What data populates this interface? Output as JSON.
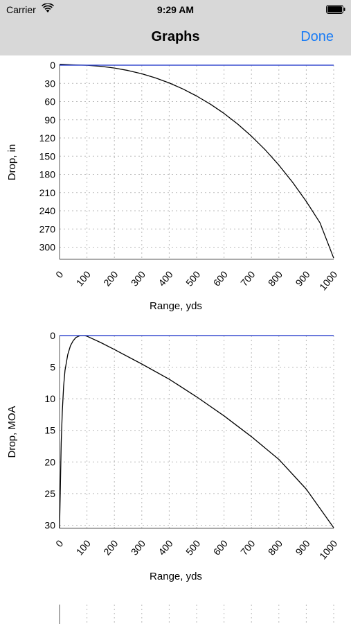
{
  "status_bar": {
    "carrier": "Carrier",
    "time": "9:29 AM"
  },
  "nav": {
    "title": "Graphs",
    "done_label": "Done",
    "accent_color": "#1a7cf5"
  },
  "chart_data": [
    {
      "type": "line",
      "xlabel": "Range, yds",
      "ylabel": "Drop, in",
      "x_ticks": [
        0,
        100,
        200,
        300,
        400,
        500,
        600,
        700,
        800,
        900,
        1000
      ],
      "y_ticks": [
        0,
        30,
        60,
        90,
        120,
        150,
        180,
        210,
        240,
        270,
        300
      ],
      "xlim": [
        0,
        1000
      ],
      "ylim": [
        0,
        320
      ],
      "y_inverted": true,
      "grid": true,
      "series": [
        {
          "color": "#000000",
          "x": [
            0,
            50,
            100,
            150,
            200,
            250,
            300,
            350,
            400,
            450,
            500,
            550,
            600,
            650,
            700,
            750,
            800,
            850,
            900,
            950,
            1000
          ],
          "y": [
            -1.5,
            -0.6,
            0.1,
            1.8,
            4.7,
            8.8,
            14.2,
            21,
            29.3,
            39.2,
            50.8,
            64.2,
            79.6,
            97.1,
            117,
            139.4,
            164.7,
            193,
            224.6,
            259.8,
            318
          ]
        },
        {
          "color": "#3a4fd0",
          "x": [
            0,
            1000
          ],
          "y": [
            0,
            0
          ]
        }
      ]
    },
    {
      "type": "line",
      "xlabel": "Range, yds",
      "ylabel": "Drop, MOA",
      "x_ticks": [
        0,
        100,
        200,
        300,
        400,
        500,
        600,
        700,
        800,
        900,
        1000
      ],
      "y_ticks": [
        0,
        5,
        10,
        15,
        20,
        25,
        30
      ],
      "xlim": [
        0,
        1000
      ],
      "ylim": [
        0,
        30.5
      ],
      "y_inverted": true,
      "grid": true,
      "series": [
        {
          "color": "#000000",
          "x": [
            0,
            3,
            6,
            10,
            15,
            20,
            30,
            40,
            50,
            60,
            75,
            90,
            100,
            150,
            200,
            300,
            400,
            500,
            600,
            700,
            800,
            900,
            1000
          ],
          "y": [
            30.5,
            24,
            17,
            12,
            8,
            5.5,
            3,
            1.6,
            0.8,
            0.3,
            0,
            0,
            0.1,
            1.1,
            2.2,
            4.5,
            6.9,
            9.7,
            12.7,
            16.0,
            19.6,
            24.3,
            30.4
          ]
        },
        {
          "color": "#3a4fd0",
          "x": [
            0,
            1000
          ],
          "y": [
            0,
            0
          ]
        }
      ]
    }
  ]
}
